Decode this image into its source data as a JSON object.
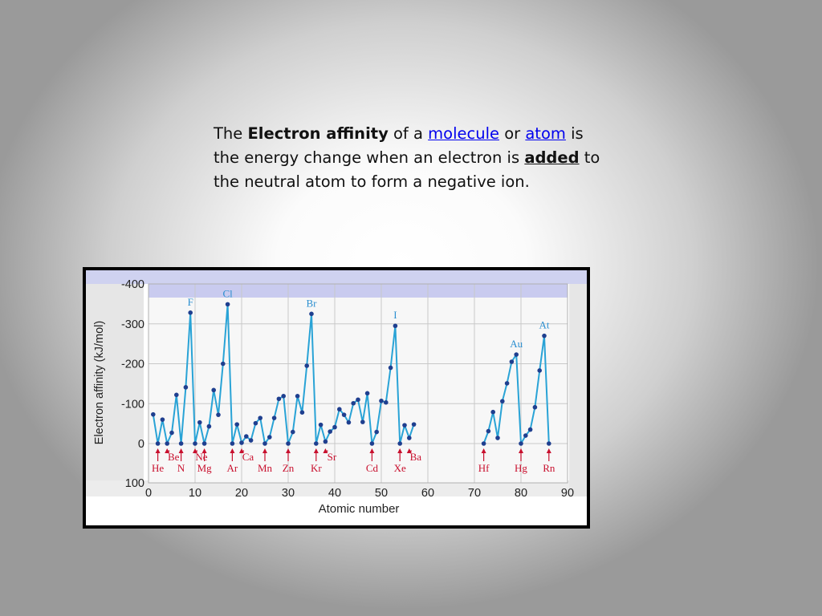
{
  "slide": {
    "intro": "The",
    "term": "Electron affinity",
    "of_a": "of a",
    "link_molecule": "molecule",
    "or": "or",
    "link_atom": "atom",
    "is_line": "is the energy change when an electron is",
    "emph_added": "added",
    "end": "to the neutral atom to form a negative ion."
  },
  "chart_data": {
    "type": "line",
    "xlabel": "Atomic number",
    "ylabel": "Electron affinity (kJ/mol)",
    "xlim": [
      0,
      90
    ],
    "ylim": [
      100,
      -400
    ],
    "x_ticks": [
      0,
      10,
      20,
      30,
      40,
      50,
      60,
      70,
      80,
      90
    ],
    "y_ticks": [
      -400,
      -300,
      -200,
      -100,
      0,
      100
    ],
    "y_tick_labels": [
      "-400",
      "-300",
      "-200",
      "-100",
      "0",
      "100"
    ],
    "grid": true,
    "colors": {
      "line": "#29a3d6",
      "point": "#1f3f8f",
      "element_label": "#2b8fd0",
      "annotation": "#c8102e",
      "shade": "#c9cbef",
      "plot_bg": "#f7f7f7",
      "grid": "#c8c8c8"
    },
    "series": [
      {
        "segments": [
          [
            [
              1,
              -73
            ],
            [
              2,
              0
            ],
            [
              3,
              -60
            ],
            [
              4,
              0
            ],
            [
              5,
              -27
            ],
            [
              6,
              -122
            ],
            [
              7,
              0
            ],
            [
              8,
              -141
            ],
            [
              9,
              -328
            ],
            [
              10,
              0
            ],
            [
              11,
              -53
            ],
            [
              12,
              0
            ],
            [
              13,
              -43
            ],
            [
              14,
              -134
            ],
            [
              15,
              -72
            ],
            [
              16,
              -200
            ],
            [
              17,
              -349
            ],
            [
              18,
              0
            ],
            [
              19,
              -48
            ],
            [
              20,
              -2
            ],
            [
              21,
              -18
            ],
            [
              22,
              -8
            ],
            [
              23,
              -51
            ],
            [
              24,
              -64
            ],
            [
              25,
              0
            ],
            [
              26,
              -16
            ],
            [
              27,
              -64
            ],
            [
              28,
              -112
            ],
            [
              29,
              -119
            ],
            [
              30,
              0
            ],
            [
              31,
              -29
            ],
            [
              32,
              -119
            ],
            [
              33,
              -78
            ],
            [
              34,
              -195
            ],
            [
              35,
              -325
            ],
            [
              36,
              0
            ],
            [
              37,
              -47
            ],
            [
              38,
              -5
            ],
            [
              39,
              -30
            ],
            [
              40,
              -41
            ],
            [
              41,
              -86
            ],
            [
              42,
              -72
            ],
            [
              43,
              -53
            ],
            [
              44,
              -101
            ],
            [
              45,
              -110
            ],
            [
              46,
              -54
            ],
            [
              47,
              -126
            ],
            [
              48,
              0
            ],
            [
              49,
              -29
            ],
            [
              50,
              -107
            ],
            [
              51,
              -103
            ],
            [
              52,
              -190
            ],
            [
              53,
              -295
            ],
            [
              54,
              0
            ],
            [
              55,
              -46
            ],
            [
              56,
              -14
            ],
            [
              57,
              -48
            ]
          ],
          [
            [
              72,
              0
            ],
            [
              73,
              -31
            ],
            [
              74,
              -79
            ],
            [
              75,
              -14
            ],
            [
              76,
              -106
            ],
            [
              77,
              -151
            ],
            [
              78,
              -205
            ],
            [
              79,
              -223
            ],
            [
              80,
              0
            ],
            [
              81,
              -20
            ],
            [
              82,
              -35
            ],
            [
              83,
              -91
            ],
            [
              84,
              -183
            ],
            [
              85,
              -270
            ],
            [
              86,
              0
            ]
          ]
        ]
      }
    ],
    "element_labels": [
      {
        "symbol": "F",
        "x": 9
      },
      {
        "symbol": "Cl",
        "x": 17
      },
      {
        "symbol": "Br",
        "x": 35
      },
      {
        "symbol": "I",
        "x": 53
      },
      {
        "symbol": "Au",
        "x": 79
      },
      {
        "symbol": "At",
        "x": 85
      }
    ],
    "noble_annotations": [
      {
        "symbol": "He",
        "x": 2,
        "row": 2
      },
      {
        "symbol": "Be",
        "x": 4,
        "row": 1
      },
      {
        "symbol": "N",
        "x": 7,
        "row": 2
      },
      {
        "symbol": "Ne",
        "x": 10,
        "row": 1
      },
      {
        "symbol": "Mg",
        "x": 12,
        "row": 2
      },
      {
        "symbol": "Ar",
        "x": 18,
        "row": 2
      },
      {
        "symbol": "Ca",
        "x": 20,
        "row": 1
      },
      {
        "symbol": "Mn",
        "x": 25,
        "row": 2
      },
      {
        "symbol": "Zn",
        "x": 30,
        "row": 2
      },
      {
        "symbol": "Kr",
        "x": 36,
        "row": 2
      },
      {
        "symbol": "Sr",
        "x": 38,
        "row": 1
      },
      {
        "symbol": "Cd",
        "x": 48,
        "row": 2
      },
      {
        "symbol": "Xe",
        "x": 54,
        "row": 2
      },
      {
        "symbol": "Ba",
        "x": 56,
        "row": 1
      },
      {
        "symbol": "Hf",
        "x": 72,
        "row": 2
      },
      {
        "symbol": "Hg",
        "x": 80,
        "row": 2
      },
      {
        "symbol": "Rn",
        "x": 86,
        "row": 2
      }
    ]
  }
}
